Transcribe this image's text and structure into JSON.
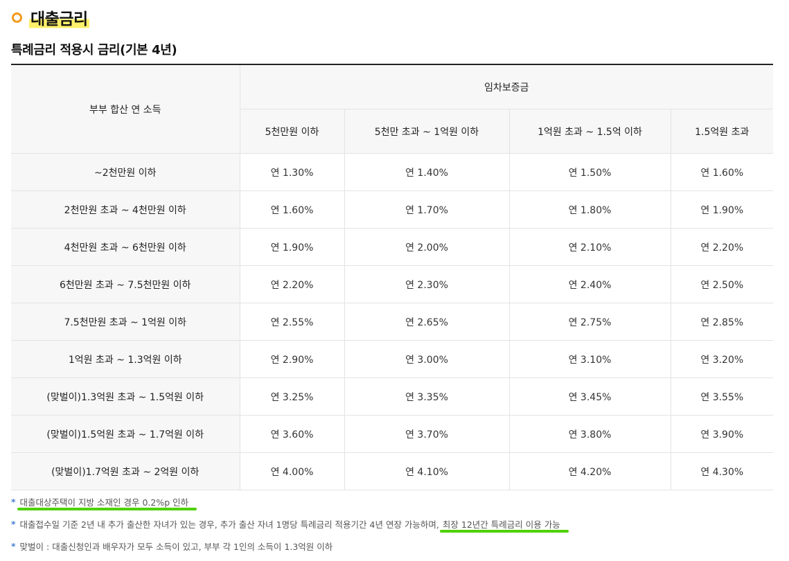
{
  "section": {
    "title": "대출금리",
    "subtitle": "특례금리 적용시 금리(기본 4년)"
  },
  "table": {
    "income_header": "부부 합산 연 소득",
    "deposit_header": "임차보증금",
    "deposit_columns": [
      "5천만원 이하",
      "5천만 초과 ~ 1억원 이하",
      "1억원 초과 ~ 1.5억 이하",
      "1.5억원 초과"
    ],
    "rows": [
      {
        "income": "~2천만원 이하",
        "rates": [
          "연 1.30%",
          "연 1.40%",
          "연 1.50%",
          "연 1.60%"
        ]
      },
      {
        "income": "2천만원 초과 ~ 4천만원 이하",
        "rates": [
          "연 1.60%",
          "연 1.70%",
          "연 1.80%",
          "연 1.90%"
        ]
      },
      {
        "income": "4천만원 초과 ~ 6천만원 이하",
        "rates": [
          "연 1.90%",
          "연 2.00%",
          "연 2.10%",
          "연 2.20%"
        ]
      },
      {
        "income": "6천만원 초과 ~ 7.5천만원 이하",
        "rates": [
          "연 2.20%",
          "연 2.30%",
          "연 2.40%",
          "연 2.50%"
        ]
      },
      {
        "income": "7.5천만원 초과 ~ 1억원 이하",
        "rates": [
          "연 2.55%",
          "연 2.65%",
          "연 2.75%",
          "연 2.85%"
        ]
      },
      {
        "income": "1억원 초과 ~ 1.3억원 이하",
        "rates": [
          "연 2.90%",
          "연 3.00%",
          "연 3.10%",
          "연 3.20%"
        ]
      },
      {
        "income": "(맞벌이)1.3억원 초과 ~ 1.5억원 이하",
        "rates": [
          "연 3.25%",
          "연 3.35%",
          "연 3.45%",
          "연 3.55%"
        ]
      },
      {
        "income": "(맞벌이)1.5억원 초과 ~ 1.7억원 이하",
        "rates": [
          "연 3.60%",
          "연 3.70%",
          "연 3.80%",
          "연 3.90%"
        ]
      },
      {
        "income": "(맞벌이)1.7억원 초과 ~ 2억원 이하",
        "rates": [
          "연 4.00%",
          "연 4.10%",
          "연 4.20%",
          "연 4.30%"
        ]
      }
    ]
  },
  "notes": {
    "star": "*",
    "note1": "대출대상주택이 지방 소재인 경우 0.2%p 인하",
    "note2_main": "대출접수일 기준 2년 내 추가 출산한 자녀가 있는 경우, 추가 출산 자녀 1명당 특례금리 적용기간 4년 연장 가능하며,",
    "note2_highlight": "최장 12년간 특례금리 이용 가능",
    "note3": "맞벌이 : 대출신청인과 배우자가 모두 소득이 있고, 부부 각 1인의 소득이 1.3억원 이하"
  },
  "colors": {
    "bullet": "#f39a1c",
    "title_highlight": "#fff06a",
    "note_underline": "#4fd100",
    "star": "#4a7fd4"
  }
}
